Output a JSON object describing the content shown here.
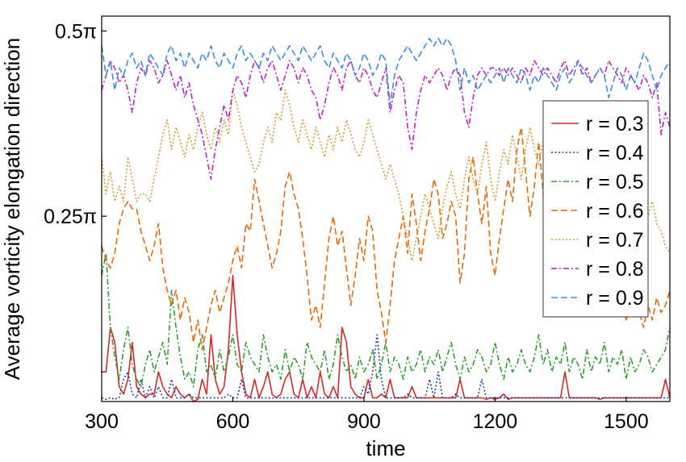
{
  "chart_data": {
    "type": "line",
    "xlabel": "time",
    "ylabel": "Average vorticity elongation direction",
    "xlim": [
      300,
      1600
    ],
    "ylim": [
      0,
      0.52
    ],
    "x_ticks": [
      300,
      600,
      900,
      1200,
      1500
    ],
    "x_tick_labels": [
      "300",
      "600",
      "900",
      "1200",
      "1500"
    ],
    "y_ticks": [
      0.25,
      0.5
    ],
    "y_tick_labels": [
      "0.25π",
      "0.5π"
    ],
    "y_unit": "π",
    "grid": false,
    "legend_position": "right",
    "x": [
      300,
      310,
      320,
      330,
      340,
      350,
      360,
      370,
      380,
      390,
      400,
      410,
      420,
      430,
      440,
      450,
      460,
      470,
      480,
      490,
      500,
      510,
      520,
      530,
      540,
      550,
      560,
      570,
      580,
      590,
      600,
      610,
      620,
      630,
      640,
      650,
      660,
      670,
      680,
      690,
      700,
      710,
      720,
      730,
      740,
      750,
      760,
      770,
      780,
      790,
      800,
      810,
      820,
      830,
      840,
      850,
      860,
      870,
      880,
      890,
      900,
      910,
      920,
      930,
      940,
      950,
      960,
      970,
      980,
      990,
      1000,
      1010,
      1020,
      1030,
      1040,
      1050,
      1060,
      1070,
      1080,
      1090,
      1100,
      1110,
      1120,
      1130,
      1140,
      1150,
      1160,
      1170,
      1180,
      1190,
      1200,
      1210,
      1220,
      1230,
      1240,
      1250,
      1260,
      1270,
      1280,
      1290,
      1300,
      1310,
      1320,
      1330,
      1340,
      1350,
      1360,
      1370,
      1380,
      1390,
      1400,
      1410,
      1420,
      1430,
      1440,
      1450,
      1460,
      1470,
      1480,
      1490,
      1500,
      1510,
      1520,
      1530,
      1540,
      1550,
      1560,
      1570,
      1580,
      1590,
      1600
    ],
    "series": [
      {
        "name": "r = 0.3",
        "color": "#d62728",
        "dash": "solid",
        "values": [
          0.04,
          0.04,
          0.1,
          0.08,
          0.02,
          0.01,
          0.03,
          0.08,
          0.02,
          0.01,
          0.005,
          0.01,
          0.01,
          0.04,
          0.02,
          0.01,
          0.005,
          0.02,
          0.01,
          0.005,
          0.01,
          0.0,
          0.003,
          0.03,
          0.01,
          0.09,
          0.03,
          0.01,
          0.02,
          0.07,
          0.17,
          0.09,
          0.04,
          0.01,
          0.005,
          0.03,
          0.005,
          0.02,
          0.04,
          0.01,
          0.005,
          0.01,
          0.03,
          0.04,
          0.01,
          0.005,
          0.03,
          0.005,
          0.02,
          0.005,
          0.04,
          0.01,
          0.005,
          0.02,
          0.005,
          0.1,
          0.08,
          0.02,
          0.01,
          0.005,
          0.005,
          0.03,
          0.005,
          0.005,
          0.01,
          0.005,
          0.03,
          0.005,
          0.005,
          0.005,
          0.005,
          0.02,
          0.005,
          0.005,
          0.005,
          0.005,
          0.005,
          0.005,
          0.005,
          0.005,
          0.005,
          0.005,
          0.03,
          0.005,
          0.005,
          0.005,
          0.005,
          0.005,
          0.003,
          0.005,
          0.003,
          0.005,
          0.01,
          0.003,
          0.005,
          0.005,
          0.005,
          0.005,
          0.005,
          0.005,
          0.005,
          0.005,
          0.005,
          0.005,
          0.005,
          0.005,
          0.04,
          0.005,
          0.005,
          0.005,
          0.005,
          0.005,
          0.005,
          0.005,
          0.003,
          0.005,
          0.005,
          0.005,
          0.005,
          0.005,
          0.005,
          0.005,
          0.005,
          0.005,
          0.005,
          0.005,
          0.005,
          0.005,
          0.005,
          0.03,
          0.005
        ]
      },
      {
        "name": "r = 0.4",
        "color": "#1f3c9e",
        "dash": "dot",
        "values": [
          0.005,
          0.003,
          0.005,
          0.003,
          0.005,
          0.03,
          0.04,
          0.01,
          0.005,
          0.03,
          0.005,
          0.02,
          0.005,
          0.02,
          0.005,
          0.005,
          0.03,
          0.005,
          0.005,
          0.005,
          0.01,
          0.005,
          0.005,
          0.005,
          0.005,
          0.005,
          0.005,
          0.005,
          0.005,
          0.01,
          0.005,
          0.005,
          0.03,
          0.005,
          0.005,
          0.005,
          0.005,
          0.005,
          0.005,
          0.005,
          0.005,
          0.005,
          0.005,
          0.005,
          0.005,
          0.005,
          0.005,
          0.005,
          0.005,
          0.005,
          0.005,
          0.005,
          0.005,
          0.005,
          0.005,
          0.005,
          0.005,
          0.005,
          0.005,
          0.005,
          0.02,
          0.01,
          0.04,
          0.09,
          0.03,
          0.005,
          0.005,
          0.005,
          0.005,
          0.005,
          0.01,
          0.005,
          0.005,
          0.005,
          0.005,
          0.03,
          0.005,
          0.04,
          0.005,
          0.005,
          0.005,
          0.01,
          0.005,
          0.005,
          0.005,
          0.005,
          0.005,
          0.03,
          0.005,
          0.005,
          0.005,
          0.005,
          0.005,
          0.005,
          0.005,
          0.005,
          0.005,
          0.005,
          0.005,
          0.005,
          0.005,
          0.005,
          0.005,
          0.005,
          0.005,
          0.005,
          0.005,
          0.005,
          0.005,
          0.005,
          0.005,
          0.005,
          0.005,
          0.005,
          0.005,
          0.005,
          0.005,
          0.005,
          0.005,
          0.005,
          0.005,
          0.005,
          0.005,
          0.005,
          0.005,
          0.005,
          0.005,
          0.005,
          0.005,
          0.005,
          0.005
        ]
      },
      {
        "name": "r = 0.5",
        "color": "#2ca02c",
        "dash": "dashdot",
        "values": [
          0.17,
          0.2,
          0.1,
          0.06,
          0.03,
          0.07,
          0.1,
          0.05,
          0.03,
          0.02,
          0.05,
          0.07,
          0.04,
          0.06,
          0.08,
          0.05,
          0.15,
          0.1,
          0.06,
          0.03,
          0.04,
          0.02,
          0.07,
          0.09,
          0.04,
          0.05,
          0.03,
          0.07,
          0.04,
          0.06,
          0.09,
          0.05,
          0.04,
          0.08,
          0.06,
          0.05,
          0.04,
          0.09,
          0.06,
          0.04,
          0.05,
          0.03,
          0.07,
          0.04,
          0.06,
          0.05,
          0.03,
          0.08,
          0.06,
          0.05,
          0.04,
          0.07,
          0.03,
          0.05,
          0.09,
          0.06,
          0.04,
          0.05,
          0.03,
          0.06,
          0.04,
          0.05,
          0.07,
          0.03,
          0.05,
          0.08,
          0.04,
          0.06,
          0.05,
          0.03,
          0.06,
          0.04,
          0.05,
          0.07,
          0.04,
          0.06,
          0.05,
          0.07,
          0.04,
          0.06,
          0.08,
          0.05,
          0.03,
          0.06,
          0.04,
          0.05,
          0.07,
          0.06,
          0.04,
          0.05,
          0.08,
          0.05,
          0.03,
          0.06,
          0.04,
          0.05,
          0.07,
          0.05,
          0.04,
          0.06,
          0.09,
          0.05,
          0.07,
          0.04,
          0.06,
          0.05,
          0.08,
          0.04,
          0.06,
          0.05,
          0.03,
          0.07,
          0.04,
          0.06,
          0.05,
          0.08,
          0.04,
          0.06,
          0.05,
          0.07,
          0.03,
          0.06,
          0.04,
          0.05,
          0.07,
          0.06,
          0.04,
          0.05,
          0.06,
          0.07,
          0.1
        ]
      },
      {
        "name": "r = 0.6",
        "color": "#e66a0a",
        "dash": "dash",
        "values": [
          0.21,
          0.19,
          0.18,
          0.2,
          0.24,
          0.26,
          0.27,
          0.26,
          0.26,
          0.23,
          0.21,
          0.19,
          0.21,
          0.24,
          0.18,
          0.15,
          0.13,
          0.15,
          0.11,
          0.14,
          0.12,
          0.08,
          0.11,
          0.07,
          0.1,
          0.13,
          0.15,
          0.12,
          0.14,
          0.16,
          0.19,
          0.21,
          0.18,
          0.24,
          0.23,
          0.3,
          0.27,
          0.24,
          0.21,
          0.18,
          0.2,
          0.23,
          0.29,
          0.31,
          0.28,
          0.26,
          0.22,
          0.17,
          0.11,
          0.13,
          0.1,
          0.16,
          0.22,
          0.25,
          0.21,
          0.23,
          0.18,
          0.13,
          0.17,
          0.22,
          0.19,
          0.25,
          0.23,
          0.15,
          0.12,
          0.08,
          0.13,
          0.19,
          0.22,
          0.25,
          0.2,
          0.28,
          0.24,
          0.19,
          0.23,
          0.26,
          0.3,
          0.28,
          0.22,
          0.24,
          0.27,
          0.25,
          0.16,
          0.2,
          0.3,
          0.33,
          0.28,
          0.24,
          0.29,
          0.2,
          0.17,
          0.22,
          0.26,
          0.3,
          0.27,
          0.34,
          0.37,
          0.31,
          0.25,
          0.29,
          0.35,
          0.28,
          0.24,
          0.21,
          0.18,
          0.2,
          0.17,
          0.14,
          0.12,
          0.16,
          0.21,
          0.19,
          0.17,
          0.15,
          0.14,
          0.16,
          0.15,
          0.12,
          0.16,
          0.14,
          0.11,
          0.13,
          0.15,
          0.12,
          0.1,
          0.13,
          0.11,
          0.14,
          0.12,
          0.13,
          0.15
        ]
      },
      {
        "name": "r = 0.7",
        "color": "#d59b2a",
        "dash": "dot",
        "values": [
          0.33,
          0.28,
          0.31,
          0.27,
          0.29,
          0.27,
          0.33,
          0.3,
          0.27,
          0.28,
          0.28,
          0.27,
          0.3,
          0.33,
          0.36,
          0.38,
          0.34,
          0.37,
          0.35,
          0.33,
          0.36,
          0.34,
          0.37,
          0.39,
          0.36,
          0.34,
          0.37,
          0.35,
          0.38,
          0.36,
          0.42,
          0.4,
          0.37,
          0.35,
          0.33,
          0.31,
          0.32,
          0.35,
          0.37,
          0.35,
          0.39,
          0.38,
          0.42,
          0.4,
          0.37,
          0.35,
          0.38,
          0.36,
          0.34,
          0.37,
          0.35,
          0.33,
          0.36,
          0.34,
          0.37,
          0.35,
          0.38,
          0.36,
          0.34,
          0.33,
          0.35,
          0.38,
          0.36,
          0.34,
          0.32,
          0.3,
          0.32,
          0.3,
          0.28,
          0.25,
          0.22,
          0.19,
          0.22,
          0.25,
          0.28,
          0.26,
          0.24,
          0.22,
          0.26,
          0.29,
          0.31,
          0.28,
          0.26,
          0.3,
          0.33,
          0.3,
          0.28,
          0.32,
          0.35,
          0.3,
          0.27,
          0.31,
          0.34,
          0.32,
          0.36,
          0.33,
          0.3,
          0.34,
          0.37,
          0.34,
          0.32,
          0.35,
          0.33,
          0.3,
          0.33,
          0.29,
          0.26,
          0.28,
          0.31,
          0.28,
          0.27,
          0.29,
          0.32,
          0.3,
          0.28,
          0.31,
          0.27,
          0.29,
          0.32,
          0.28,
          0.26,
          0.29,
          0.27,
          0.3,
          0.28,
          0.25,
          0.27,
          0.24,
          0.23,
          0.21,
          0.2
        ]
      },
      {
        "name": "r = 0.8",
        "color": "#c21fc7",
        "dash": "dashdot",
        "values": [
          0.42,
          0.44,
          0.46,
          0.45,
          0.43,
          0.44,
          0.42,
          0.39,
          0.43,
          0.45,
          0.44,
          0.46,
          0.45,
          0.43,
          0.44,
          0.46,
          0.44,
          0.42,
          0.44,
          0.41,
          0.43,
          0.4,
          0.38,
          0.36,
          0.33,
          0.3,
          0.34,
          0.37,
          0.4,
          0.38,
          0.42,
          0.44,
          0.43,
          0.41,
          0.44,
          0.46,
          0.45,
          0.43,
          0.45,
          0.46,
          0.44,
          0.42,
          0.44,
          0.46,
          0.45,
          0.43,
          0.45,
          0.44,
          0.42,
          0.41,
          0.38,
          0.4,
          0.43,
          0.45,
          0.44,
          0.42,
          0.45,
          0.46,
          0.44,
          0.43,
          0.45,
          0.44,
          0.42,
          0.41,
          0.43,
          0.45,
          0.39,
          0.42,
          0.44,
          0.43,
          0.37,
          0.34,
          0.39,
          0.42,
          0.44,
          0.43,
          0.44,
          0.45,
          0.44,
          0.42,
          0.44,
          0.45,
          0.44,
          0.39,
          0.37,
          0.41,
          0.44,
          0.45,
          0.44,
          0.45,
          0.45,
          0.44,
          0.45,
          0.44,
          0.45,
          0.44,
          0.43,
          0.45,
          0.44,
          0.46,
          0.45,
          0.44,
          0.45,
          0.44,
          0.43,
          0.45,
          0.46,
          0.44,
          0.45,
          0.46,
          0.44,
          0.45,
          0.43,
          0.44,
          0.45,
          0.44,
          0.46,
          0.45,
          0.44,
          0.43,
          0.45,
          0.44,
          0.43,
          0.42,
          0.44,
          0.43,
          0.41,
          0.43,
          0.36,
          0.39,
          0.37
        ]
      },
      {
        "name": "r = 0.9",
        "color": "#3b8ee0",
        "dash": "dash",
        "values": [
          0.48,
          0.44,
          0.46,
          0.42,
          0.45,
          0.44,
          0.46,
          0.47,
          0.45,
          0.46,
          0.44,
          0.47,
          0.46,
          0.45,
          0.44,
          0.47,
          0.48,
          0.46,
          0.47,
          0.45,
          0.47,
          0.46,
          0.45,
          0.47,
          0.46,
          0.48,
          0.46,
          0.45,
          0.47,
          0.46,
          0.45,
          0.47,
          0.48,
          0.46,
          0.47,
          0.46,
          0.45,
          0.47,
          0.46,
          0.48,
          0.47,
          0.46,
          0.47,
          0.48,
          0.47,
          0.46,
          0.48,
          0.47,
          0.46,
          0.47,
          0.48,
          0.46,
          0.45,
          0.47,
          0.46,
          0.45,
          0.47,
          0.46,
          0.44,
          0.45,
          0.47,
          0.46,
          0.44,
          0.45,
          0.47,
          0.46,
          0.4,
          0.44,
          0.46,
          0.47,
          0.48,
          0.47,
          0.46,
          0.47,
          0.48,
          0.49,
          0.48,
          0.49,
          0.48,
          0.49,
          0.48,
          0.46,
          0.42,
          0.45,
          0.43,
          0.44,
          0.42,
          0.43,
          0.44,
          0.43,
          0.44,
          0.45,
          0.43,
          0.45,
          0.44,
          0.43,
          0.45,
          0.44,
          0.42,
          0.44,
          0.43,
          0.45,
          0.44,
          0.43,
          0.42,
          0.44,
          0.45,
          0.43,
          0.44,
          0.46,
          0.45,
          0.44,
          0.43,
          0.44,
          0.45,
          0.44,
          0.41,
          0.43,
          0.45,
          0.44,
          0.42,
          0.44,
          0.43,
          0.45,
          0.47,
          0.46,
          0.44,
          0.42,
          0.44,
          0.45,
          0.46
        ]
      }
    ]
  }
}
